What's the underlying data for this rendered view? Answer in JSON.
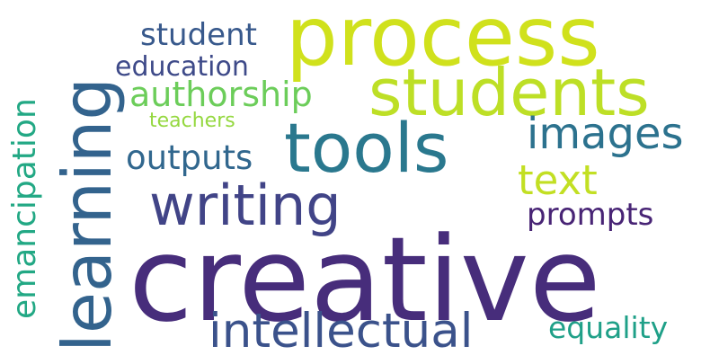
{
  "words": {
    "creative": {
      "text": "creative",
      "color": "#472d7b"
    },
    "process": {
      "text": "process",
      "color": "#d0e11c"
    },
    "learning": {
      "text": "learning",
      "color": "#33638d"
    },
    "students": {
      "text": "students",
      "color": "#bddf26"
    },
    "tools": {
      "text": "tools",
      "color": "#2a788e"
    },
    "writing": {
      "text": "writing",
      "color": "#414487"
    },
    "intellectual": {
      "text": "intellectual",
      "color": "#3b528b"
    },
    "images": {
      "text": "images",
      "color": "#2c728e"
    },
    "text": {
      "text": "text",
      "color": "#c2df23"
    },
    "authorship": {
      "text": "authorship",
      "color": "#6ccd5a"
    },
    "emancipation": {
      "text": "emancipation",
      "color": "#22a884"
    },
    "student": {
      "text": "student",
      "color": "#38598c"
    },
    "education": {
      "text": "education",
      "color": "#3e4a89"
    },
    "outputs": {
      "text": "outputs",
      "color": "#31678e"
    },
    "prompts": {
      "text": "prompts",
      "color": "#482475"
    },
    "equality": {
      "text": "equality",
      "color": "#1fa088"
    },
    "teachers": {
      "text": "teachers",
      "color": "#95d840"
    }
  }
}
